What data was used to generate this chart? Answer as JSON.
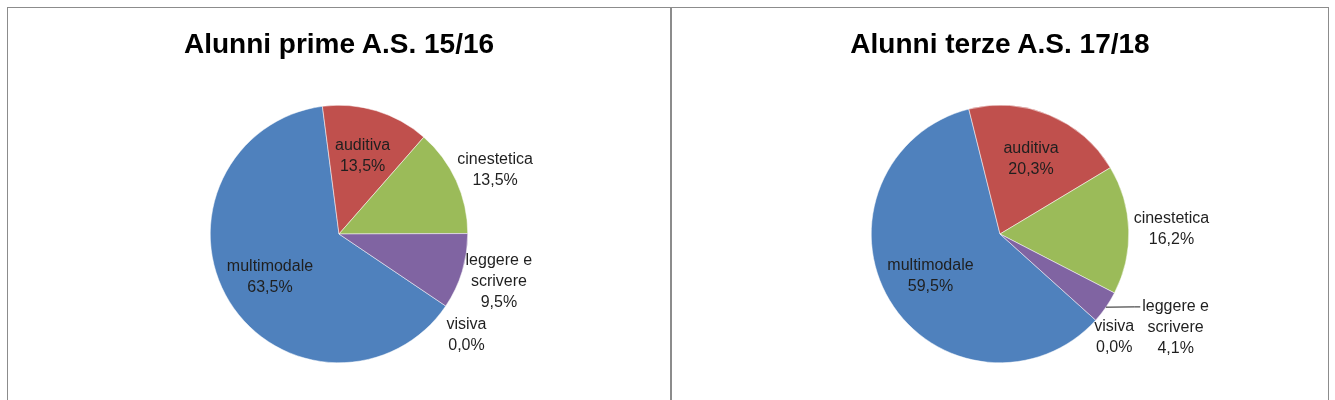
{
  "chart_data": [
    {
      "type": "pie",
      "title": "Alunni prime A.S. 15/16",
      "categories": [
        "multimodale",
        "auditiva",
        "cinestetica",
        "leggere e scrivere",
        "visiva"
      ],
      "values": [
        63.5,
        13.5,
        13.5,
        9.5,
        0.0
      ],
      "colors": [
        "#4f81bd",
        "#c0504d",
        "#9bbb59",
        "#8064a2",
        "#4bacc6"
      ],
      "value_labels": [
        "63,5%",
        "13,5%",
        "13,5%",
        "9,5%",
        "0,0%"
      ]
    },
    {
      "type": "pie",
      "title": "Alunni terze A.S. 17/18",
      "categories": [
        "multimodale",
        "auditiva",
        "cinestetica",
        "leggere e scrivere",
        "visiva"
      ],
      "values": [
        59.5,
        20.3,
        16.2,
        4.1,
        0.0
      ],
      "colors": [
        "#4f81bd",
        "#c0504d",
        "#9bbb59",
        "#8064a2",
        "#4bacc6"
      ],
      "value_labels": [
        "59,5%",
        "20,3%",
        "16,2%",
        "4,1%",
        "0,0%"
      ]
    }
  ]
}
